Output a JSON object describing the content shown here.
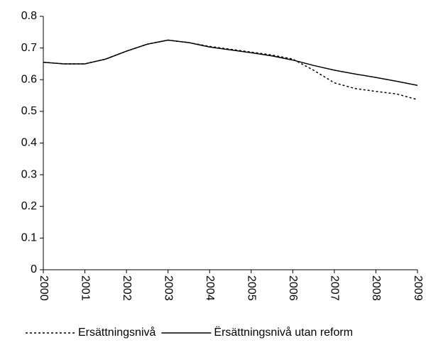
{
  "chart_data": {
    "type": "line",
    "x": [
      2000,
      2000.5,
      2001,
      2001.5,
      2002,
      2002.5,
      2003,
      2003.5,
      2004,
      2004.5,
      2005,
      2005.5,
      2006,
      2006.5,
      2007,
      2007.5,
      2008,
      2008.5,
      2009
    ],
    "series": [
      {
        "name": "Ersättningsnivå",
        "color": "#000000",
        "dash": true,
        "values": [
          0.655,
          0.65,
          0.65,
          0.665,
          0.69,
          0.712,
          0.725,
          0.717,
          0.705,
          0.696,
          0.687,
          0.678,
          0.665,
          0.63,
          0.59,
          0.572,
          0.563,
          0.555,
          0.537
        ]
      },
      {
        "name": "Ërsättningsnivå utan reform",
        "color": "#000000",
        "dash": false,
        "values": [
          0.655,
          0.65,
          0.65,
          0.665,
          0.69,
          0.712,
          0.725,
          0.717,
          0.703,
          0.694,
          0.685,
          0.675,
          0.662,
          0.645,
          0.63,
          0.618,
          0.607,
          0.595,
          0.582
        ]
      }
    ],
    "xlim": [
      2000,
      2009
    ],
    "xticks": [
      2000,
      2001,
      2002,
      2003,
      2004,
      2005,
      2006,
      2007,
      2008,
      2009
    ],
    "ylim": [
      0,
      0.8
    ],
    "yticks": [
      0,
      0.1,
      0.2,
      0.3,
      0.4,
      0.5,
      0.6,
      0.7,
      0.8
    ],
    "legend": "bottom"
  }
}
